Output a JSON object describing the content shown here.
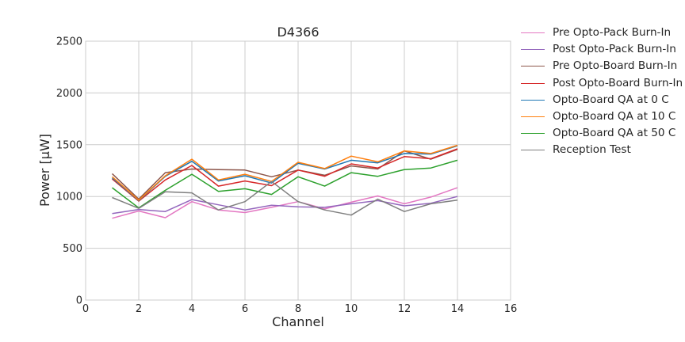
{
  "chart_data": {
    "type": "line",
    "title": "D4366",
    "xlabel": "Channel",
    "ylabel": "Power [μW]",
    "xlim": [
      0,
      16
    ],
    "ylim": [
      0,
      2500
    ],
    "xticks": [
      0,
      2,
      4,
      6,
      8,
      10,
      12,
      14,
      16
    ],
    "yticks": [
      0,
      500,
      1000,
      1500,
      2000,
      2500
    ],
    "grid": true,
    "legend_position": "outside-right",
    "x": [
      1,
      2,
      3,
      4,
      5,
      6,
      7,
      8,
      9,
      10,
      11,
      12,
      13,
      14
    ],
    "series": [
      {
        "name": "Pre Opto-Pack Burn-In",
        "color": "#e377c2",
        "values": [
          790,
          860,
          795,
          950,
          870,
          845,
          895,
          950,
          880,
          945,
          1005,
          930,
          995,
          1085
        ]
      },
      {
        "name": "Post Opto-Pack Burn-In",
        "color": "#9467bd",
        "values": [
          835,
          875,
          855,
          970,
          920,
          870,
          915,
          900,
          895,
          930,
          960,
          910,
          935,
          1000
        ]
      },
      {
        "name": "Pre Opto-Board Burn-In",
        "color": "#8c564b",
        "values": [
          1220,
          975,
          1230,
          1265,
          1260,
          1255,
          1190,
          1255,
          1205,
          1295,
          1265,
          1440,
          1360,
          1455
        ]
      },
      {
        "name": "Post Opto-Board Burn-In",
        "color": "#d62728",
        "values": [
          1170,
          955,
          1160,
          1300,
          1100,
          1150,
          1105,
          1255,
          1195,
          1315,
          1275,
          1385,
          1365,
          1460
        ]
      },
      {
        "name": "Opto-Board QA at 0 C",
        "color": "#1f77b4",
        "values": [
          1180,
          960,
          1195,
          1340,
          1150,
          1200,
          1130,
          1320,
          1265,
          1350,
          1325,
          1415,
          1410,
          1490
        ]
      },
      {
        "name": "Opto-Board QA at 10 C",
        "color": "#ff7f0e",
        "values": [
          1190,
          965,
          1200,
          1360,
          1160,
          1215,
          1145,
          1330,
          1270,
          1390,
          1335,
          1440,
          1415,
          1495
        ]
      },
      {
        "name": "Opto-Board QA at 50 C",
        "color": "#2ca02c",
        "values": [
          1085,
          890,
          1060,
          1215,
          1050,
          1075,
          1020,
          1190,
          1100,
          1230,
          1195,
          1260,
          1275,
          1350
        ]
      },
      {
        "name": "Reception Test",
        "color": "#7f7f7f",
        "values": [
          990,
          885,
          1045,
          1035,
          870,
          950,
          1145,
          950,
          870,
          820,
          975,
          855,
          930,
          965
        ]
      }
    ]
  }
}
